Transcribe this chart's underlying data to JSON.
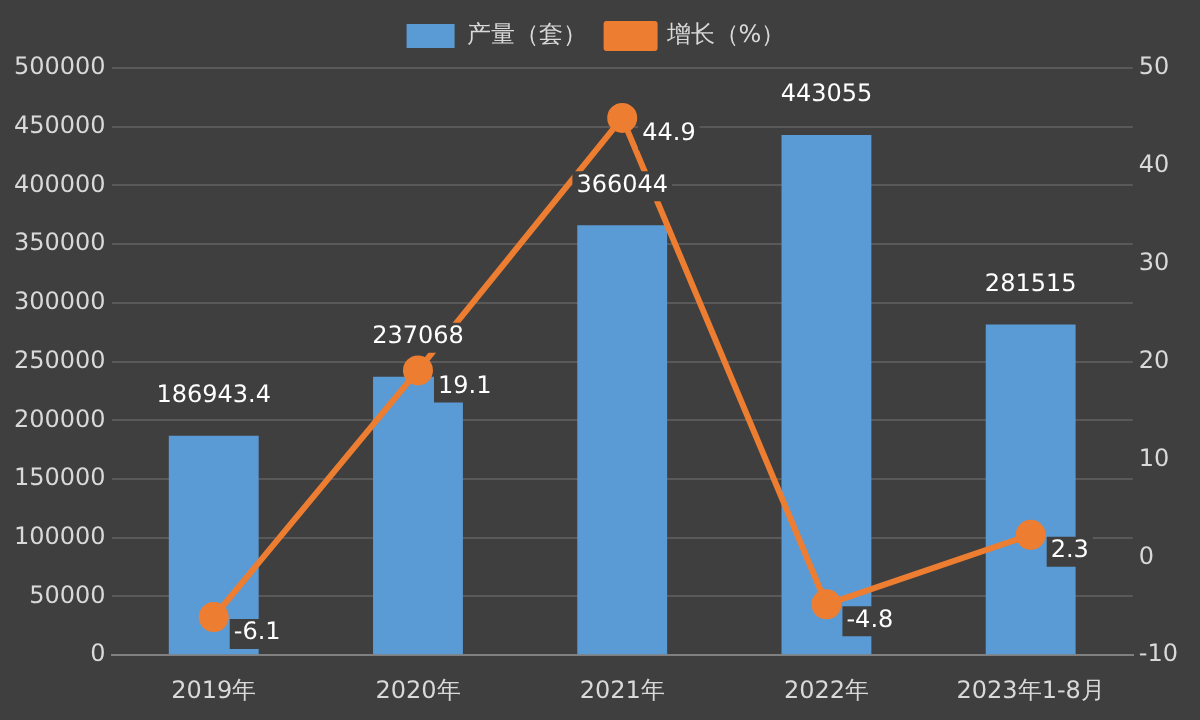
{
  "chart_data": {
    "type": "bar",
    "categories": [
      "2019年",
      "2020年",
      "2021年",
      "2022年",
      "2023年1-8月"
    ],
    "series": [
      {
        "name": "产量（套）",
        "color": "#5b9bd5",
        "values": [
          186943.4,
          237068,
          366044,
          443055,
          281515
        ]
      },
      {
        "name": "增长（%）",
        "type": "line",
        "axis": "y2",
        "color": "#ed7d31",
        "values": [
          -6.1,
          19.1,
          44.9,
          -4.8,
          2.3
        ]
      }
    ],
    "ylim": [
      0,
      500000
    ],
    "yticks": [
      0,
      50000,
      100000,
      150000,
      200000,
      250000,
      300000,
      350000,
      400000,
      450000,
      500000
    ],
    "y2lim": [
      -10,
      50
    ],
    "y2ticks": [
      -10,
      0,
      10,
      20,
      30,
      40,
      50
    ],
    "grid": "y",
    "legend": "top",
    "marker": "circle",
    "data_labels": true
  }
}
